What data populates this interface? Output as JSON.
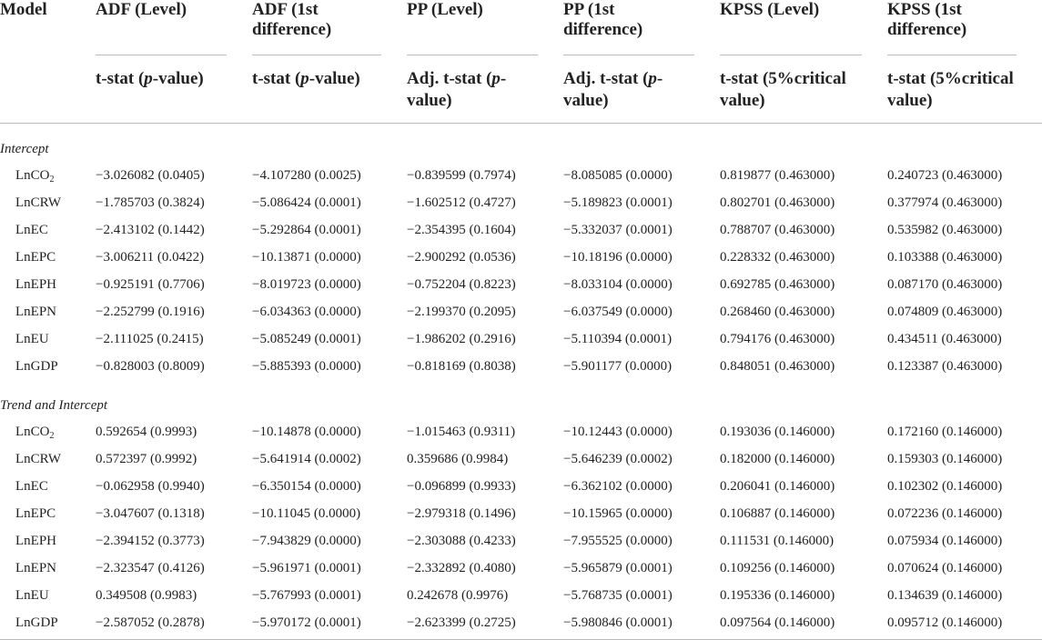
{
  "header": {
    "model": "Model",
    "columns": [
      {
        "group": "ADF (Level)",
        "stat_main": "t-stat (",
        "stat_ital": "p",
        "stat_tail": "-value)"
      },
      {
        "group": "ADF (1st difference)",
        "stat_main": "t-stat (",
        "stat_ital": "p",
        "stat_tail": "-value)"
      },
      {
        "group": "PP (Level)",
        "stat_main": "Adj. t-stat (",
        "stat_ital": "p",
        "stat_tail": "-value)"
      },
      {
        "group": "PP (1st difference)",
        "stat_main": "Adj. t-stat (",
        "stat_ital": "p",
        "stat_tail": "-value)"
      },
      {
        "group": "KPSS (Level)",
        "stat_main": "t-stat (5%critical value)",
        "stat_ital": "",
        "stat_tail": ""
      },
      {
        "group": "KPSS (1st difference)",
        "stat_main": "t-stat (5%critical value)",
        "stat_ital": "",
        "stat_tail": ""
      }
    ]
  },
  "sections": [
    {
      "label": "Intercept",
      "rows": [
        {
          "var": "LnCO",
          "sub": "2",
          "values": [
            "−3.026082 (0.0405)",
            "−4.107280 (0.0025)",
            "−0.839599 (0.7974)",
            "−8.085085 (0.0000)",
            "0.819877 (0.463000)",
            "0.240723 (0.463000)"
          ]
        },
        {
          "var": "LnCRW",
          "sub": "",
          "values": [
            "−1.785703 (0.3824)",
            "−5.086424 (0.0001)",
            "−1.602512 (0.4727)",
            "−5.189823 (0.0001)",
            "0.802701 (0.463000)",
            "0.377974 (0.463000)"
          ]
        },
        {
          "var": "LnEC",
          "sub": "",
          "values": [
            "−2.413102 (0.1442)",
            "−5.292864 (0.0001)",
            "−2.354395 (0.1604)",
            "−5.332037 (0.0001)",
            "0.788707 (0.463000)",
            "0.535982 (0.463000)"
          ]
        },
        {
          "var": "LnEPC",
          "sub": "",
          "values": [
            "−3.006211 (0.0422)",
            "−10.13871 (0.0000)",
            "−2.900292 (0.0536)",
            "−10.18196 (0.0000)",
            "0.228332 (0.463000)",
            "0.103388 (0.463000)"
          ]
        },
        {
          "var": "LnEPH",
          "sub": "",
          "values": [
            "−0.925191 (0.7706)",
            "−8.019723 (0.0000)",
            "−0.752204 (0.8223)",
            "−8.033104 (0.0000)",
            "0.692785 (0.463000)",
            "0.087170 (0.463000)"
          ]
        },
        {
          "var": "LnEPN",
          "sub": "",
          "values": [
            "−2.252799 (0.1916)",
            "−6.034363 (0.0000)",
            "−2.199370 (0.2095)",
            "−6.037549 (0.0000)",
            "0.268460 (0.463000)",
            "0.074809 (0.463000)"
          ]
        },
        {
          "var": "LnEU",
          "sub": "",
          "values": [
            "−2.111025 (0.2415)",
            "−5.085249 (0.0001)",
            "−1.986202 (0.2916)",
            "−5.110394 (0.0001)",
            "0.794176 (0.463000)",
            "0.434511 (0.463000)"
          ]
        },
        {
          "var": "LnGDP",
          "sub": "",
          "values": [
            "−0.828003 (0.8009)",
            "−5.885393 (0.0000)",
            "−0.818169 (0.8038)",
            "−5.901177 (0.0000)",
            "0.848051 (0.463000)",
            "0.123387 (0.463000)"
          ]
        }
      ]
    },
    {
      "label": "Trend and Intercept",
      "rows": [
        {
          "var": "LnCO",
          "sub": "2",
          "values": [
            "0.592654 (0.9993)",
            "−10.14878 (0.0000)",
            "−1.015463 (0.9311)",
            "−10.12443 (0.0000)",
            "0.193036 (0.146000)",
            "0.172160 (0.146000)"
          ]
        },
        {
          "var": "LnCRW",
          "sub": "",
          "values": [
            "0.572397 (0.9992)",
            "−5.641914 (0.0002)",
            "0.359686 (0.9984)",
            "−5.646239 (0.0002)",
            "0.182000 (0.146000)",
            "0.159303 (0.146000)"
          ]
        },
        {
          "var": "LnEC",
          "sub": "",
          "values": [
            "−0.062958 (0.9940)",
            "−6.350154 (0.0000)",
            "−0.096899 (0.9933)",
            "−6.362102 (0.0000)",
            "0.206041 (0.146000)",
            "0.102302 (0.146000)"
          ]
        },
        {
          "var": "LnEPC",
          "sub": "",
          "values": [
            "−3.047607 (0.1318)",
            "−10.11045 (0.0000)",
            "−2.979318 (0.1496)",
            "−10.15965 (0.0000)",
            "0.106887 (0.146000)",
            "0.072236 (0.146000)"
          ]
        },
        {
          "var": "LnEPH",
          "sub": "",
          "values": [
            "−2.394152 (0.3773)",
            "−7.943829 (0.0000)",
            "−2.303088 (0.4233)",
            "−7.955525 (0.0000)",
            "0.111531 (0.146000)",
            "0.075934 (0.146000)"
          ]
        },
        {
          "var": "LnEPN",
          "sub": "",
          "values": [
            "−2.323547 (0.4126)",
            "−5.961971 (0.0001)",
            "−2.332892 (0.4080)",
            "−5.965879 (0.0001)",
            "0.109256 (0.146000)",
            "0.070624 (0.146000)"
          ]
        },
        {
          "var": "LnEU",
          "sub": "",
          "values": [
            "0.349508 (0.9983)",
            "−5.767993 (0.0001)",
            "0.242678 (0.9976)",
            "−5.768735 (0.0001)",
            "0.195336 (0.146000)",
            "0.134639 (0.146000)"
          ]
        },
        {
          "var": "LnGDP",
          "sub": "",
          "values": [
            "−2.587052 (0.2878)",
            "−5.970172 (0.0001)",
            "−2.623399 (0.2725)",
            "−5.980846 (0.0001)",
            "0.097564 (0.146000)",
            "0.095712 (0.146000)"
          ]
        }
      ]
    }
  ]
}
